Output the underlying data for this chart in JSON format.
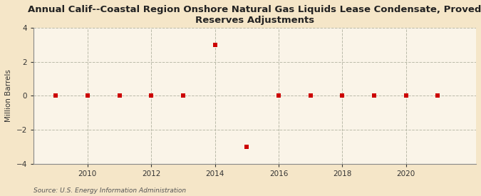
{
  "title": "Annual Calif--Coastal Region Onshore Natural Gas Liquids Lease Condensate, Proved\nReserves Adjustments",
  "ylabel": "Million Barrels",
  "source_text": "Source: U.S. Energy Information Administration",
  "background_color": "#f5e6c8",
  "plot_bg_color": "#faf4e8",
  "marker_color": "#cc0000",
  "marker_size": 4,
  "marker_style": "s",
  "years": [
    2009,
    2010,
    2011,
    2012,
    2013,
    2014,
    2015,
    2016,
    2017,
    2018,
    2019,
    2020,
    2021
  ],
  "values": [
    0,
    0,
    0,
    0,
    0,
    3.0,
    -3.0,
    0,
    0,
    0,
    0,
    0,
    0
  ],
  "xlim": [
    2008.3,
    2022.2
  ],
  "ylim": [
    -4,
    4
  ],
  "yticks": [
    -4,
    -2,
    0,
    2,
    4
  ],
  "xticks": [
    2010,
    2012,
    2014,
    2016,
    2018,
    2020
  ],
  "grid_color": "#bbbbaa",
  "grid_style": "--",
  "title_fontsize": 9.5,
  "ylabel_fontsize": 7.5,
  "tick_fontsize": 7.5,
  "source_fontsize": 6.5
}
